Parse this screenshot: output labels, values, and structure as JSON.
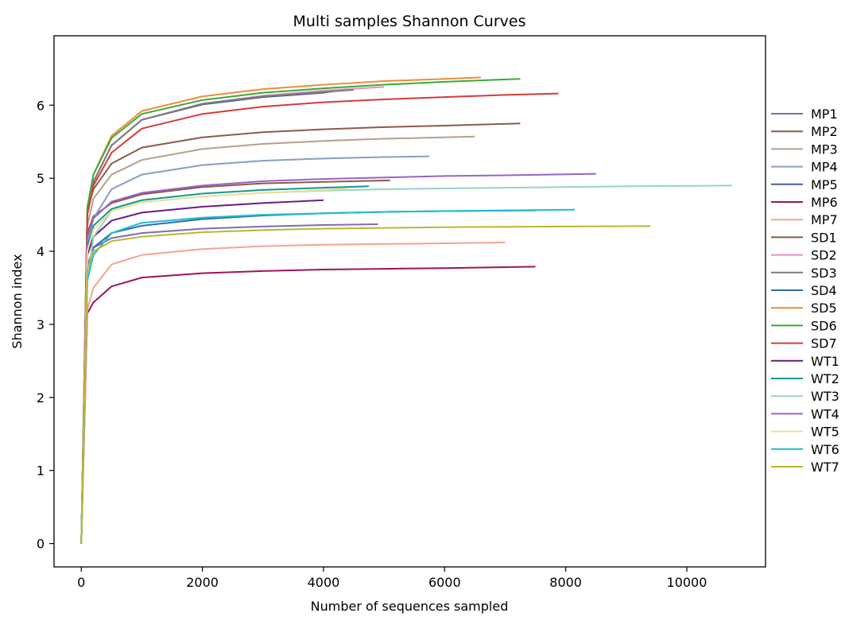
{
  "chart_data": {
    "type": "line",
    "title": "Multi samples Shannon Curves",
    "xlabel": "Number of sequences sampled",
    "ylabel": "Shannon index",
    "xlim": [
      -450,
      11300
    ],
    "ylim": [
      -0.32,
      6.95
    ],
    "xticks": [
      0,
      2000,
      4000,
      6000,
      8000,
      10000
    ],
    "yticks": [
      0,
      1,
      2,
      3,
      4,
      5,
      6
    ],
    "grid": false,
    "legend_position": "right",
    "series": [
      {
        "name": "MP1",
        "color": "#7b6fae",
        "points": [
          [
            0,
            0
          ],
          [
            100,
            3.8
          ],
          [
            200,
            4.05
          ],
          [
            500,
            4.18
          ],
          [
            1000,
            4.25
          ],
          [
            2000,
            4.31
          ],
          [
            3000,
            4.34
          ],
          [
            4000,
            4.36
          ],
          [
            4900,
            4.37
          ]
        ]
      },
      {
        "name": "MP2",
        "color": "#8b5a4a",
        "points": [
          [
            0,
            0
          ],
          [
            100,
            4.25
          ],
          [
            200,
            4.48
          ],
          [
            500,
            4.66
          ],
          [
            1000,
            4.78
          ],
          [
            2000,
            4.88
          ],
          [
            3000,
            4.93
          ],
          [
            4000,
            4.95
          ],
          [
            5100,
            4.97
          ]
        ]
      },
      {
        "name": "MP3",
        "color": "#b5a08e",
        "points": [
          [
            0,
            0
          ],
          [
            100,
            4.35
          ],
          [
            200,
            4.72
          ],
          [
            500,
            5.05
          ],
          [
            1000,
            5.25
          ],
          [
            2000,
            5.4
          ],
          [
            3000,
            5.47
          ],
          [
            4000,
            5.51
          ],
          [
            5000,
            5.54
          ],
          [
            6500,
            5.57
          ]
        ]
      },
      {
        "name": "MP4",
        "color": "#8b9cc4",
        "points": [
          [
            0,
            0
          ],
          [
            100,
            4.1
          ],
          [
            200,
            4.45
          ],
          [
            500,
            4.85
          ],
          [
            1000,
            5.05
          ],
          [
            2000,
            5.18
          ],
          [
            3000,
            5.24
          ],
          [
            4000,
            5.27
          ],
          [
            5000,
            5.29
          ],
          [
            5750,
            5.3
          ]
        ]
      },
      {
        "name": "MP5",
        "color": "#4a5a9a",
        "points": [
          [
            0,
            0
          ],
          [
            100,
            4.55
          ],
          [
            200,
            4.95
          ],
          [
            500,
            5.45
          ],
          [
            1000,
            5.8
          ],
          [
            2000,
            6.01
          ],
          [
            3000,
            6.11
          ],
          [
            4000,
            6.17
          ],
          [
            4150,
            6.19
          ]
        ]
      },
      {
        "name": "MP6",
        "color": "#9e1458",
        "points": [
          [
            0,
            0
          ],
          [
            100,
            3.15
          ],
          [
            200,
            3.3
          ],
          [
            500,
            3.52
          ],
          [
            1000,
            3.64
          ],
          [
            2000,
            3.7
          ],
          [
            3000,
            3.73
          ],
          [
            4000,
            3.75
          ],
          [
            5000,
            3.76
          ],
          [
            6000,
            3.77
          ],
          [
            7500,
            3.79
          ]
        ]
      },
      {
        "name": "MP7",
        "color": "#f4a58c",
        "points": [
          [
            0,
            0
          ],
          [
            100,
            3.2
          ],
          [
            200,
            3.5
          ],
          [
            500,
            3.82
          ],
          [
            1000,
            3.95
          ],
          [
            2000,
            4.03
          ],
          [
            3000,
            4.07
          ],
          [
            4000,
            4.09
          ],
          [
            5000,
            4.1
          ],
          [
            6000,
            4.11
          ],
          [
            7000,
            4.12
          ]
        ]
      },
      {
        "name": "SD1",
        "color": "#8b5a4a",
        "points": [
          [
            0,
            0
          ],
          [
            100,
            4.55
          ],
          [
            200,
            4.85
          ],
          [
            500,
            5.2
          ],
          [
            1000,
            5.42
          ],
          [
            2000,
            5.56
          ],
          [
            3000,
            5.63
          ],
          [
            4000,
            5.67
          ],
          [
            5000,
            5.7
          ],
          [
            6000,
            5.72
          ],
          [
            7250,
            5.75
          ]
        ]
      },
      {
        "name": "SD2",
        "color": "#e88ec8",
        "points": [
          [
            0,
            0
          ],
          [
            100,
            4.55
          ],
          [
            200,
            4.95
          ],
          [
            500,
            5.45
          ],
          [
            1000,
            5.8
          ],
          [
            2000,
            6.02
          ],
          [
            3000,
            6.13
          ],
          [
            4000,
            6.2
          ],
          [
            5000,
            6.25
          ]
        ]
      },
      {
        "name": "SD3",
        "color": "#7a7a7a",
        "points": [
          [
            0,
            0
          ],
          [
            100,
            4.55
          ],
          [
            200,
            4.95
          ],
          [
            500,
            5.45
          ],
          [
            1000,
            5.8
          ],
          [
            2000,
            6.02
          ],
          [
            3000,
            6.12
          ],
          [
            4000,
            6.18
          ],
          [
            4500,
            6.21
          ]
        ]
      },
      {
        "name": "SD4",
        "color": "#2e6fb0",
        "points": [
          [
            0,
            0
          ],
          [
            100,
            3.7
          ],
          [
            200,
            4.05
          ],
          [
            500,
            4.25
          ],
          [
            1000,
            4.35
          ],
          [
            2000,
            4.44
          ],
          [
            3000,
            4.49
          ],
          [
            4000,
            4.52
          ],
          [
            5000,
            4.54
          ],
          [
            6000,
            4.55
          ],
          [
            7500,
            4.56
          ]
        ]
      },
      {
        "name": "SD5",
        "color": "#f28a35",
        "points": [
          [
            0,
            0
          ],
          [
            100,
            4.6
          ],
          [
            200,
            5.05
          ],
          [
            500,
            5.58
          ],
          [
            1000,
            5.92
          ],
          [
            2000,
            6.12
          ],
          [
            3000,
            6.22
          ],
          [
            4000,
            6.28
          ],
          [
            5000,
            6.33
          ],
          [
            6000,
            6.36
          ],
          [
            6600,
            6.38
          ]
        ]
      },
      {
        "name": "SD6",
        "color": "#3aaa35",
        "points": [
          [
            0,
            0
          ],
          [
            100,
            4.6
          ],
          [
            200,
            5.05
          ],
          [
            500,
            5.55
          ],
          [
            1000,
            5.88
          ],
          [
            2000,
            6.07
          ],
          [
            3000,
            6.17
          ],
          [
            4000,
            6.23
          ],
          [
            5000,
            6.28
          ],
          [
            6000,
            6.32
          ],
          [
            7250,
            6.36
          ]
        ]
      },
      {
        "name": "SD7",
        "color": "#d63a3a",
        "points": [
          [
            0,
            0
          ],
          [
            100,
            4.5
          ],
          [
            200,
            4.9
          ],
          [
            500,
            5.35
          ],
          [
            1000,
            5.68
          ],
          [
            2000,
            5.88
          ],
          [
            3000,
            5.98
          ],
          [
            4000,
            6.04
          ],
          [
            5000,
            6.08
          ],
          [
            6000,
            6.11
          ],
          [
            7000,
            6.14
          ],
          [
            7880,
            6.16
          ]
        ]
      },
      {
        "name": "WT1",
        "color": "#6a1b7e",
        "points": [
          [
            0,
            0
          ],
          [
            100,
            3.95
          ],
          [
            200,
            4.2
          ],
          [
            500,
            4.42
          ],
          [
            1000,
            4.53
          ],
          [
            2000,
            4.61
          ],
          [
            3000,
            4.66
          ],
          [
            4000,
            4.7
          ]
        ]
      },
      {
        "name": "WT2",
        "color": "#0f9a8c",
        "points": [
          [
            0,
            0
          ],
          [
            100,
            4.05
          ],
          [
            200,
            4.35
          ],
          [
            500,
            4.58
          ],
          [
            1000,
            4.7
          ],
          [
            2000,
            4.79
          ],
          [
            3000,
            4.84
          ],
          [
            4000,
            4.87
          ],
          [
            4750,
            4.89
          ]
        ]
      },
      {
        "name": "WT3",
        "color": "#96d4c4",
        "points": [
          [
            0,
            0
          ],
          [
            100,
            3.6
          ],
          [
            200,
            4.2
          ],
          [
            500,
            4.55
          ],
          [
            1000,
            4.67
          ],
          [
            2000,
            4.75
          ],
          [
            3000,
            4.8
          ],
          [
            4000,
            4.83
          ],
          [
            5000,
            4.85
          ],
          [
            6000,
            4.86
          ],
          [
            7000,
            4.87
          ],
          [
            8000,
            4.88
          ],
          [
            9000,
            4.89
          ],
          [
            10750,
            4.9
          ]
        ]
      },
      {
        "name": "WT4",
        "color": "#9a62c8",
        "points": [
          [
            0,
            0
          ],
          [
            100,
            4.2
          ],
          [
            200,
            4.45
          ],
          [
            500,
            4.68
          ],
          [
            1000,
            4.8
          ],
          [
            2000,
            4.9
          ],
          [
            3000,
            4.96
          ],
          [
            4000,
            4.99
          ],
          [
            5000,
            5.01
          ],
          [
            6000,
            5.03
          ],
          [
            7000,
            5.04
          ],
          [
            8500,
            5.06
          ]
        ]
      },
      {
        "name": "WT5",
        "color": "#f2dc9a",
        "points": [
          [
            0,
            0
          ],
          [
            100,
            4.0
          ],
          [
            200,
            4.3
          ],
          [
            500,
            4.55
          ],
          [
            1000,
            4.67
          ],
          [
            2000,
            4.75
          ],
          [
            3000,
            4.8
          ],
          [
            4000,
            4.84
          ],
          [
            4400,
            4.86
          ]
        ]
      },
      {
        "name": "WT6",
        "color": "#1fbcd2",
        "points": [
          [
            0,
            0
          ],
          [
            100,
            3.6
          ],
          [
            200,
            3.95
          ],
          [
            500,
            4.25
          ],
          [
            1000,
            4.39
          ],
          [
            2000,
            4.46
          ],
          [
            3000,
            4.5
          ],
          [
            4000,
            4.52
          ],
          [
            5000,
            4.54
          ],
          [
            6000,
            4.55
          ],
          [
            7000,
            4.56
          ],
          [
            8150,
            4.57
          ]
        ]
      },
      {
        "name": "WT7",
        "color": "#b8b82e",
        "points": [
          [
            0,
            0
          ],
          [
            100,
            3.75
          ],
          [
            200,
            4.0
          ],
          [
            500,
            4.14
          ],
          [
            1000,
            4.2
          ],
          [
            2000,
            4.26
          ],
          [
            3000,
            4.29
          ],
          [
            4000,
            4.31
          ],
          [
            5000,
            4.32
          ],
          [
            6000,
            4.33
          ],
          [
            7000,
            4.335
          ],
          [
            8000,
            4.34
          ],
          [
            9400,
            4.345
          ]
        ]
      }
    ]
  }
}
